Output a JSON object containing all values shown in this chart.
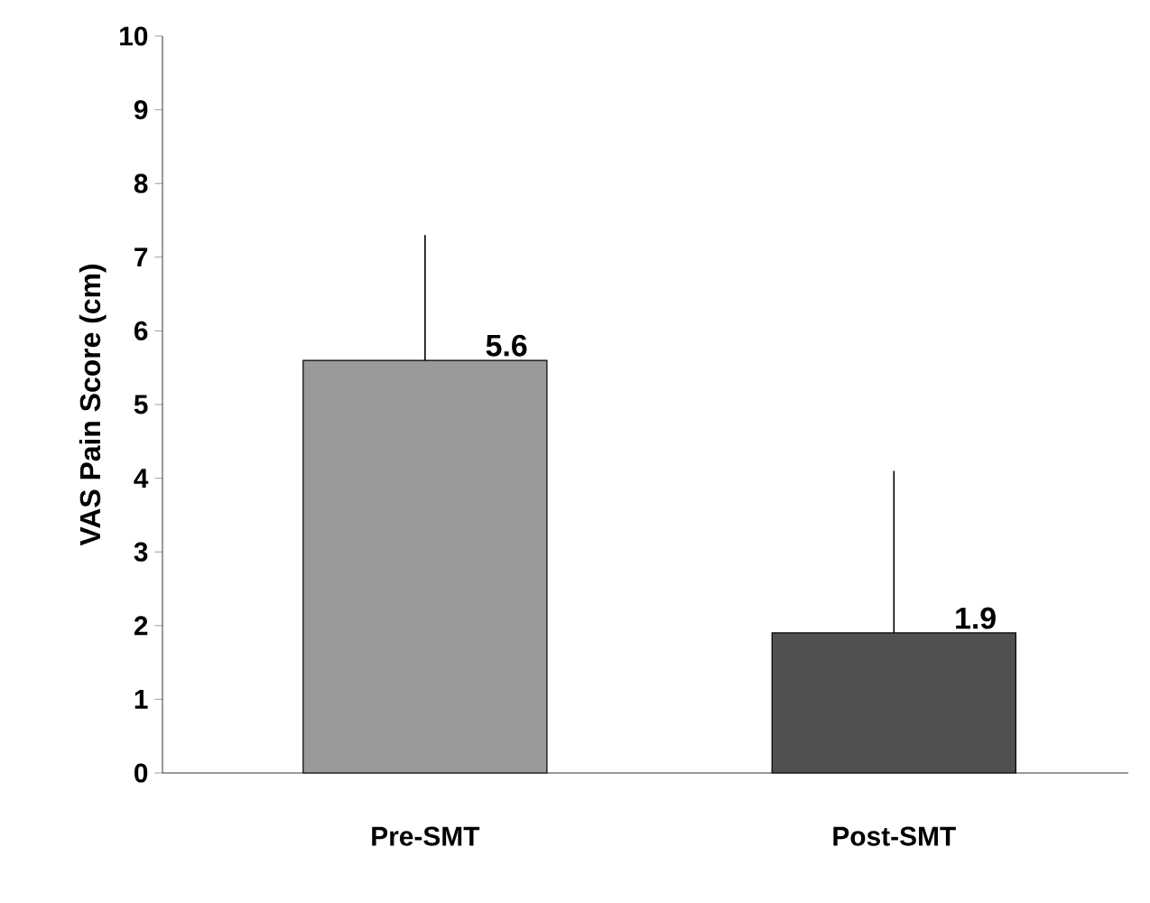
{
  "chart_data": {
    "type": "bar",
    "ylabel": "VAS Pain Score (cm)",
    "categories": [
      "Pre-SMT",
      "Post-SMT"
    ],
    "values": [
      5.6,
      1.9
    ],
    "colors": [
      "#9a9a9a",
      "#505050"
    ],
    "errors": [
      [
        5.6,
        7.3
      ],
      [
        1.9,
        4.1
      ]
    ],
    "data_labels": true,
    "ylim": [
      0,
      10
    ],
    "yticks": [
      0,
      1,
      2,
      3,
      4,
      5,
      6,
      7,
      8,
      9,
      10
    ],
    "grid": false
  }
}
